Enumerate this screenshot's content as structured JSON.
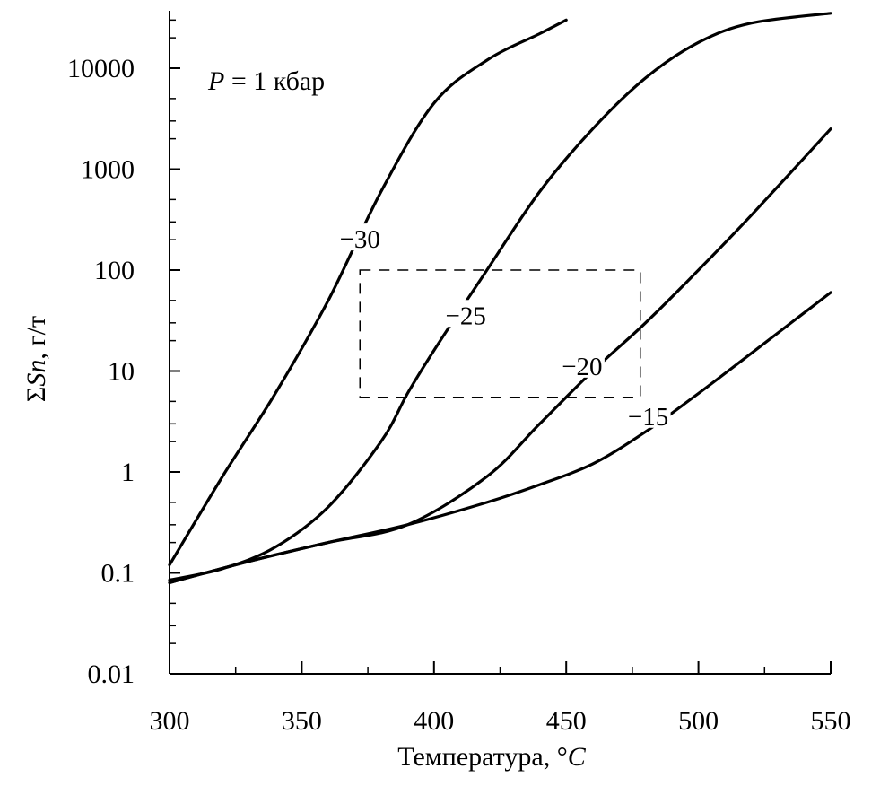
{
  "chart_data": {
    "type": "line",
    "title": "",
    "annotation": {
      "italic": "P",
      "rest": " = 1 кбар"
    },
    "xlabel": {
      "text": "Температура, ",
      "degree": "°",
      "unit": "C"
    },
    "ylabel": {
      "sigma": "Σ",
      "italic": "Sn",
      "rest": ", г/т"
    },
    "x_scale": "linear",
    "y_scale": "log",
    "xlim": [
      300,
      550
    ],
    "ylim": [
      0.01,
      40000
    ],
    "x_ticks": [
      300,
      350,
      400,
      450,
      500,
      550
    ],
    "x_tick_labels": [
      "300",
      "350",
      "400",
      "450",
      "500",
      "550"
    ],
    "x_minor_ticks": [
      325,
      375,
      425,
      475,
      525
    ],
    "y_ticks": [
      0.01,
      0.1,
      1,
      10,
      100,
      1000,
      10000
    ],
    "y_tick_labels": [
      "0.01",
      "0.1",
      "1",
      "10",
      "100",
      "1000",
      "10000"
    ],
    "y_minor_ticks": [
      0.02,
      0.03,
      0.05,
      0.2,
      0.3,
      0.5,
      2,
      3,
      5,
      20,
      30,
      50,
      200,
      300,
      500,
      2000,
      3000,
      5000,
      20000,
      30000
    ],
    "grid": false,
    "series": [
      {
        "name": "−30",
        "label_at": [
          372,
          200
        ],
        "x": [
          300,
          320,
          340,
          360,
          380,
          400,
          420,
          440,
          450
        ],
        "y": [
          0.12,
          0.9,
          6,
          50,
          600,
          4500,
          12000,
          22000,
          30000
        ]
      },
      {
        "name": "−25",
        "label_at": [
          412,
          35
        ],
        "x": [
          300,
          320,
          340,
          360,
          380,
          390,
          400,
          420,
          440,
          460,
          480,
          500,
          520,
          550
        ],
        "y": [
          0.085,
          0.11,
          0.18,
          0.45,
          2,
          6,
          16,
          100,
          600,
          2500,
          8000,
          18000,
          28000,
          35000
        ]
      },
      {
        "name": "−20",
        "label_at": [
          456,
          11
        ],
        "x": [
          300,
          330,
          360,
          390,
          420,
          440,
          460,
          480,
          500,
          520,
          550
        ],
        "y": [
          0.08,
          0.13,
          0.2,
          0.3,
          0.9,
          3,
          10,
          30,
          100,
          350,
          2500
        ]
      },
      {
        "name": "−15",
        "label_at": [
          481,
          3.5
        ],
        "x": [
          300,
          330,
          360,
          390,
          420,
          440,
          460,
          480,
          500,
          520,
          550
        ],
        "y": [
          0.08,
          0.13,
          0.2,
          0.3,
          0.5,
          0.75,
          1.2,
          2.5,
          6,
          15,
          60
        ]
      }
    ],
    "box": {
      "x": [
        372,
        478
      ],
      "y": [
        5.5,
        100
      ],
      "style": "dashed"
    }
  }
}
